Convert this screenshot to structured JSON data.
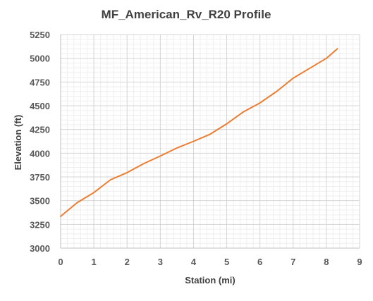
{
  "chart_data": {
    "type": "line",
    "title": "MF_American_Rv_R20 Profile",
    "xlabel": "Station (mi)",
    "ylabel": "Elevation (ft)",
    "xlim": [
      0,
      9
    ],
    "ylim": [
      3000,
      5250
    ],
    "xticks": [
      "0",
      "1",
      "2",
      "3",
      "4",
      "5",
      "6",
      "7",
      "8",
      "9"
    ],
    "yticks": [
      "3000",
      "3250",
      "3500",
      "3750",
      "4000",
      "4250",
      "4500",
      "4750",
      "5000",
      "5250"
    ],
    "grid": true,
    "legend": "none",
    "series": [
      {
        "color": "#ED7D31",
        "x": [
          0,
          0.5,
          1.0,
          1.5,
          2.0,
          2.5,
          3.0,
          3.5,
          4.0,
          4.5,
          5.0,
          5.5,
          6.0,
          6.5,
          7.0,
          7.5,
          8.0,
          8.33
        ],
        "y": [
          3335,
          3480,
          3585,
          3720,
          3795,
          3890,
          3970,
          4055,
          4125,
          4200,
          4310,
          4435,
          4530,
          4650,
          4790,
          4895,
          5000,
          5100
        ]
      }
    ]
  }
}
